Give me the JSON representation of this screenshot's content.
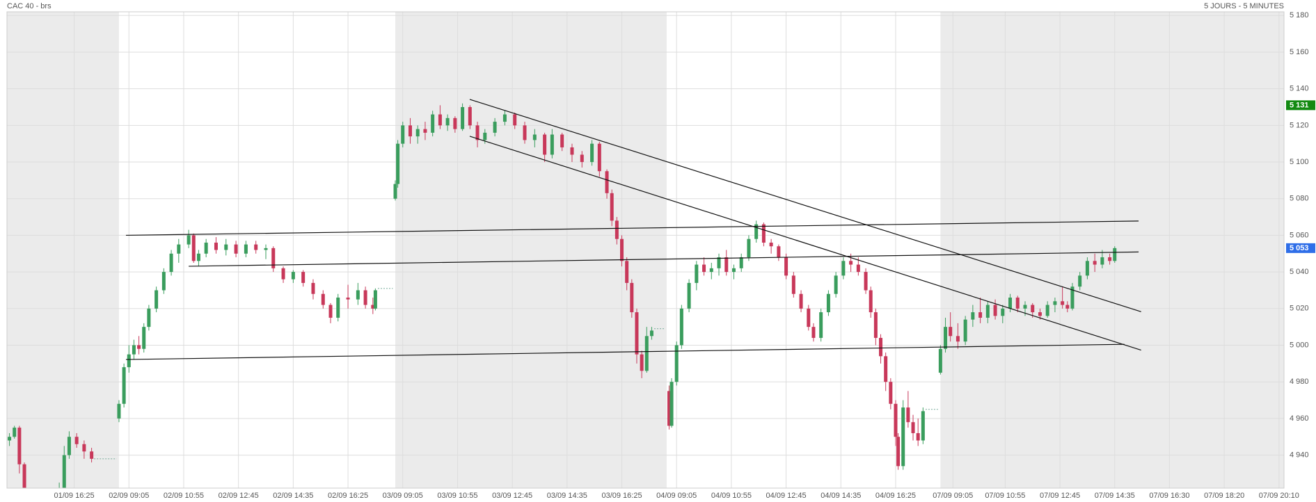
{
  "chart_data": {
    "type": "candlestick",
    "title": "CAC 40 - brs",
    "subtitle": "5 JOURS - 5 MINUTES",
    "xlim": [
      -27,
      486
    ],
    "ylim": [
      4922,
      5182
    ],
    "xticks": [
      {
        "value": 0,
        "label": "01/09 16:25"
      },
      {
        "value": 22,
        "label": "02/09 09:05"
      },
      {
        "value": 44,
        "label": "02/09 10:55"
      },
      {
        "value": 66,
        "label": "02/09 12:45"
      },
      {
        "value": 88,
        "label": "02/09 14:35"
      },
      {
        "value": 110,
        "label": "02/09 16:25"
      },
      {
        "value": 132,
        "label": "03/09 09:05"
      },
      {
        "value": 154,
        "label": "03/09 10:55"
      },
      {
        "value": 176,
        "label": "03/09 12:45"
      },
      {
        "value": 198,
        "label": "03/09 14:35"
      },
      {
        "value": 220,
        "label": "03/09 16:25"
      },
      {
        "value": 242,
        "label": "04/09 09:05"
      },
      {
        "value": 264,
        "label": "04/09 10:55"
      },
      {
        "value": 286,
        "label": "04/09 12:45"
      },
      {
        "value": 308,
        "label": "04/09 14:35"
      },
      {
        "value": 330,
        "label": "04/09 16:25"
      },
      {
        "value": 353,
        "label": "07/09 09:05"
      },
      {
        "value": 374,
        "label": "07/09 10:55"
      },
      {
        "value": 396,
        "label": "07/09 12:45"
      },
      {
        "value": 418,
        "label": "07/09 14:35"
      },
      {
        "value": 440,
        "label": "07/09 16:30"
      },
      {
        "value": 462,
        "label": "07/09 18:20"
      },
      {
        "value": 484,
        "label": "07/09 20:10"
      }
    ],
    "yticks": [
      {
        "value": 4940,
        "label": "4 940"
      },
      {
        "value": 4960,
        "label": "4 960"
      },
      {
        "value": 4980,
        "label": "4 980"
      },
      {
        "value": 5000,
        "label": "5 000"
      },
      {
        "value": 5020,
        "label": "5 020"
      },
      {
        "value": 5040,
        "label": "5 040"
      },
      {
        "value": 5060,
        "label": "5 060"
      },
      {
        "value": 5080,
        "label": "5 080"
      },
      {
        "value": 5100,
        "label": "5 100"
      },
      {
        "value": 5120,
        "label": "5 120"
      },
      {
        "value": 5140,
        "label": "5 140"
      },
      {
        "value": 5160,
        "label": "5 160"
      },
      {
        "value": 5180,
        "label": "5 180"
      }
    ],
    "grid": true,
    "up_color": "#3a9d5d",
    "down_color": "#c8385a",
    "shade_color": "#ebebeb",
    "line_color": "#111111",
    "shaded_x_ranges": [
      [
        -27,
        18
      ],
      [
        129,
        238
      ],
      [
        348,
        486
      ]
    ],
    "price_markers": [
      {
        "value": 5131,
        "label": "5 131",
        "color": "#138a12"
      },
      {
        "value": 5053,
        "label": "5 053",
        "color": "#2f6ee8"
      }
    ],
    "trendlines": [
      {
        "x": [
          20.8,
          427.6
        ],
        "y": [
          5060,
          5067.8
        ]
      },
      {
        "x": [
          46,
          427.6
        ],
        "y": [
          5043.1,
          5050.9
        ]
      },
      {
        "x": [
          20.8,
          421.9
        ],
        "y": [
          4992.2,
          5000.5
        ]
      },
      {
        "x": [
          158.9,
          428.6
        ],
        "y": [
          5134.2,
          5018.3
        ]
      },
      {
        "x": [
          158.9,
          428.6
        ],
        "y": [
          5114.1,
          4997.3
        ]
      }
    ],
    "closing_dashes": [
      {
        "x": [
          8,
          17
        ],
        "value": 4938
      },
      {
        "x": [
          122,
          128
        ],
        "value": 5031
      },
      {
        "x": [
          233,
          237
        ],
        "value": 5009
      },
      {
        "x": [
          342,
          347
        ],
        "value": 4965
      }
    ],
    "candles": [
      [
        -26,
        4948,
        4952,
        4945,
        4950
      ],
      [
        -24,
        4950,
        4956,
        4949,
        4955
      ],
      [
        -22,
        4955,
        4956,
        4930,
        4935
      ],
      [
        -20,
        4935,
        4936,
        4915,
        4918
      ],
      [
        -6,
        4918,
        4925,
        4915,
        4922
      ],
      [
        -4,
        4922,
        4945,
        4920,
        4940
      ],
      [
        -2,
        4940,
        4953,
        4938,
        4950
      ],
      [
        1,
        4950,
        4952,
        4944,
        4946
      ],
      [
        4,
        4946,
        4948,
        4938,
        4942
      ],
      [
        7,
        4942,
        4944,
        4936,
        4938
      ],
      [
        18,
        4960,
        4970,
        4958,
        4968
      ],
      [
        20,
        4968,
        4990,
        4966,
        4988
      ],
      [
        22,
        4988,
        5000,
        4985,
        4995
      ],
      [
        24,
        4995,
        5003,
        4992,
        5000
      ],
      [
        26,
        5000,
        5005,
        4995,
        4998
      ],
      [
        28,
        4998,
        5012,
        4996,
        5010
      ],
      [
        30,
        5010,
        5022,
        5008,
        5020
      ],
      [
        33,
        5020,
        5032,
        5018,
        5030
      ],
      [
        36,
        5030,
        5042,
        5028,
        5040
      ],
      [
        39,
        5040,
        5052,
        5038,
        5050
      ],
      [
        42,
        5050,
        5058,
        5045,
        5055
      ],
      [
        46,
        5055,
        5063,
        5053,
        5060
      ],
      [
        48,
        5060,
        5061,
        5045,
        5046
      ],
      [
        50,
        5046,
        5052,
        5043,
        5050
      ],
      [
        53,
        5050,
        5058,
        5048,
        5056
      ],
      [
        57,
        5056,
        5059,
        5050,
        5052
      ],
      [
        61,
        5052,
        5058,
        5049,
        5055
      ],
      [
        65,
        5055,
        5057,
        5048,
        5050
      ],
      [
        69,
        5050,
        5057,
        5048,
        5055
      ],
      [
        73,
        5055,
        5057,
        5050,
        5052
      ],
      [
        77,
        5052,
        5055,
        5047,
        5053
      ],
      [
        80,
        5053,
        5054,
        5040,
        5042
      ],
      [
        84,
        5042,
        5043,
        5034,
        5036
      ],
      [
        88,
        5036,
        5041,
        5034,
        5040
      ],
      [
        92,
        5040,
        5041,
        5032,
        5034
      ],
      [
        96,
        5034,
        5036,
        5025,
        5028
      ],
      [
        100,
        5028,
        5030,
        5020,
        5022
      ],
      [
        103,
        5022,
        5023,
        5012,
        5015
      ],
      [
        106,
        5015,
        5028,
        5013,
        5026
      ],
      [
        110,
        5026,
        5033,
        5020,
        5025
      ],
      [
        114,
        5025,
        5034,
        5022,
        5030
      ],
      [
        117,
        5030,
        5032,
        5020,
        5022
      ],
      [
        120,
        5022,
        5026,
        5017,
        5020
      ],
      [
        121,
        5020,
        5031,
        5019,
        5030
      ],
      [
        129,
        5080,
        5090,
        5079,
        5088
      ],
      [
        130,
        5088,
        5112,
        5086,
        5110
      ],
      [
        132,
        5110,
        5122,
        5108,
        5120
      ],
      [
        135,
        5120,
        5124,
        5110,
        5114
      ],
      [
        138,
        5114,
        5120,
        5110,
        5118
      ],
      [
        141,
        5118,
        5122,
        5112,
        5116
      ],
      [
        144,
        5116,
        5128,
        5114,
        5126
      ],
      [
        147,
        5126,
        5131,
        5118,
        5120
      ],
      [
        150,
        5120,
        5126,
        5117,
        5124
      ],
      [
        153,
        5124,
        5125,
        5116,
        5118
      ],
      [
        156,
        5118,
        5132,
        5117,
        5130
      ],
      [
        159,
        5130,
        5131,
        5118,
        5120
      ],
      [
        162,
        5120,
        5122,
        5108,
        5112
      ],
      [
        165,
        5112,
        5118,
        5110,
        5116
      ],
      [
        169,
        5116,
        5124,
        5114,
        5122
      ],
      [
        173,
        5122,
        5128,
        5120,
        5126
      ],
      [
        177,
        5126,
        5127,
        5118,
        5120
      ],
      [
        181,
        5120,
        5122,
        5110,
        5112
      ],
      [
        185,
        5112,
        5118,
        5108,
        5115
      ],
      [
        189,
        5115,
        5116,
        5100,
        5104
      ],
      [
        192,
        5104,
        5118,
        5102,
        5115
      ],
      [
        196,
        5115,
        5116,
        5106,
        5108
      ],
      [
        200,
        5108,
        5110,
        5100,
        5104
      ],
      [
        204,
        5104,
        5106,
        5097,
        5100
      ],
      [
        208,
        5100,
        5112,
        5098,
        5110
      ],
      [
        211,
        5110,
        5111,
        5092,
        5095
      ],
      [
        214,
        5095,
        5096,
        5080,
        5083
      ],
      [
        216,
        5083,
        5085,
        5065,
        5068
      ],
      [
        218,
        5068,
        5070,
        5055,
        5058
      ],
      [
        220,
        5058,
        5060,
        5043,
        5046
      ],
      [
        222,
        5046,
        5048,
        5030,
        5034
      ],
      [
        224,
        5034,
        5036,
        5015,
        5018
      ],
      [
        226,
        5018,
        5020,
        4990,
        4995
      ],
      [
        228,
        4995,
        4997,
        4982,
        4986
      ],
      [
        230,
        4986,
        5010,
        4985,
        5005
      ],
      [
        232,
        5005,
        5010,
        5003,
        5008
      ],
      [
        239,
        4975,
        4978,
        4954,
        4956
      ],
      [
        240,
        4956,
        4982,
        4955,
        4980
      ],
      [
        242,
        4980,
        5002,
        4978,
        5000
      ],
      [
        244,
        5000,
        5022,
        4998,
        5020
      ],
      [
        247,
        5020,
        5036,
        5018,
        5034
      ],
      [
        250,
        5034,
        5046,
        5030,
        5044
      ],
      [
        253,
        5044,
        5048,
        5038,
        5040
      ],
      [
        256,
        5040,
        5045,
        5036,
        5042
      ],
      [
        259,
        5042,
        5050,
        5038,
        5048
      ],
      [
        262,
        5048,
        5052,
        5038,
        5040
      ],
      [
        265,
        5040,
        5044,
        5036,
        5042
      ],
      [
        268,
        5042,
        5050,
        5040,
        5048
      ],
      [
        271,
        5048,
        5060,
        5046,
        5058
      ],
      [
        274,
        5058,
        5068,
        5056,
        5066
      ],
      [
        277,
        5066,
        5067,
        5054,
        5056
      ],
      [
        280,
        5056,
        5058,
        5050,
        5054
      ],
      [
        283,
        5054,
        5055,
        5046,
        5048
      ],
      [
        286,
        5048,
        5050,
        5036,
        5038
      ],
      [
        289,
        5038,
        5040,
        5026,
        5028
      ],
      [
        292,
        5028,
        5030,
        5018,
        5020
      ],
      [
        295,
        5020,
        5022,
        5008,
        5010
      ],
      [
        297,
        5010,
        5012,
        5002,
        5004
      ],
      [
        300,
        5004,
        5020,
        5002,
        5018
      ],
      [
        303,
        5018,
        5030,
        5016,
        5028
      ],
      [
        306,
        5028,
        5040,
        5026,
        5038
      ],
      [
        309,
        5038,
        5048,
        5036,
        5046
      ],
      [
        312,
        5046,
        5050,
        5040,
        5044
      ],
      [
        315,
        5044,
        5048,
        5038,
        5040
      ],
      [
        318,
        5040,
        5042,
        5028,
        5030
      ],
      [
        320,
        5030,
        5032,
        5015,
        5018
      ],
      [
        322,
        5018,
        5020,
        5000,
        5004
      ],
      [
        324,
        5004,
        5006,
        4990,
        4994
      ],
      [
        326,
        4994,
        4996,
        4975,
        4980
      ],
      [
        328,
        4980,
        4982,
        4965,
        4968
      ],
      [
        330,
        4968,
        4970,
        4945,
        4950
      ],
      [
        331,
        4950,
        4952,
        4932,
        4934
      ],
      [
        333,
        4934,
        4970,
        4932,
        4966
      ],
      [
        335,
        4966,
        4975,
        4955,
        4958
      ],
      [
        337,
        4958,
        4962,
        4948,
        4952
      ],
      [
        339,
        4952,
        4960,
        4945,
        4948
      ],
      [
        341,
        4948,
        4966,
        4946,
        4964
      ],
      [
        348,
        4985,
        5000,
        4984,
        4998
      ],
      [
        350,
        4998,
        5015,
        4996,
        5010
      ],
      [
        352,
        5010,
        5018,
        5002,
        5005
      ],
      [
        355,
        5005,
        5012,
        4998,
        5002
      ],
      [
        358,
        5002,
        5016,
        5000,
        5014
      ],
      [
        361,
        5014,
        5022,
        5010,
        5018
      ],
      [
        364,
        5018,
        5026,
        5012,
        5015
      ],
      [
        367,
        5015,
        5024,
        5012,
        5022
      ],
      [
        370,
        5022,
        5025,
        5014,
        5016
      ],
      [
        373,
        5016,
        5022,
        5012,
        5020
      ],
      [
        376,
        5020,
        5028,
        5018,
        5026
      ],
      [
        379,
        5026,
        5027,
        5018,
        5020
      ],
      [
        382,
        5020,
        5024,
        5016,
        5022
      ],
      [
        385,
        5022,
        5023,
        5015,
        5018
      ],
      [
        388,
        5018,
        5020,
        5014,
        5016
      ],
      [
        391,
        5016,
        5024,
        5015,
        5022
      ],
      [
        394,
        5022,
        5026,
        5018,
        5024
      ],
      [
        397,
        5024,
        5032,
        5020,
        5022
      ],
      [
        399,
        5022,
        5024,
        5018,
        5020
      ],
      [
        401,
        5020,
        5034,
        5019,
        5032
      ],
      [
        404,
        5032,
        5040,
        5030,
        5038
      ],
      [
        407,
        5038,
        5048,
        5036,
        5046
      ],
      [
        410,
        5046,
        5050,
        5040,
        5044
      ],
      [
        413,
        5044,
        5052,
        5042,
        5048
      ],
      [
        416,
        5048,
        5050,
        5044,
        5046
      ],
      [
        418,
        5046,
        5054,
        5045,
        5053
      ]
    ]
  }
}
